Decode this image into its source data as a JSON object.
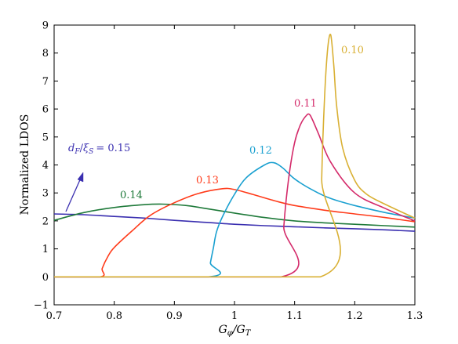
{
  "chart_data": {
    "type": "line",
    "xlabel": "G_φ/G_T",
    "ylabel": "Normalized LDOS",
    "xlim": [
      0.7,
      1.3
    ],
    "ylim": [
      -1,
      9
    ],
    "xticks": [
      0.7,
      0.8,
      0.9,
      1,
      1.1,
      1.2,
      1.3
    ],
    "yticks": [
      -1,
      0,
      1,
      2,
      3,
      4,
      5,
      6,
      7,
      8,
      9
    ],
    "xtick_labels": [
      "0.7",
      "0.8",
      "0.9",
      "1",
      "1.1",
      "1.2",
      "1.3"
    ],
    "ytick_labels": [
      "−1",
      "0",
      "1",
      "2",
      "3",
      "4",
      "5",
      "6",
      "7",
      "8",
      "9"
    ],
    "grid": false,
    "legend": "none",
    "series": [
      {
        "name": "d_F/ξ_S = 0.15",
        "label": "= 0.15",
        "color": "#3a2fb0",
        "x": [
          0.7,
          0.75,
          0.8,
          0.85,
          0.9,
          0.95,
          1.0,
          1.05,
          1.1,
          1.15,
          1.2,
          1.25,
          1.3
        ],
        "y": [
          2.25,
          2.22,
          2.16,
          2.1,
          2.02,
          1.95,
          1.88,
          1.83,
          1.79,
          1.75,
          1.72,
          1.68,
          1.63
        ]
      },
      {
        "name": "0.14",
        "label": "0.14",
        "color": "#1f7a3a",
        "x": [
          0.7,
          0.75,
          0.8,
          0.85,
          0.88,
          0.92,
          0.95,
          1.0,
          1.05,
          1.1,
          1.15,
          1.2,
          1.25,
          1.3
        ],
        "y": [
          2.02,
          2.3,
          2.48,
          2.58,
          2.6,
          2.55,
          2.45,
          2.28,
          2.12,
          2.0,
          1.93,
          1.88,
          1.83,
          1.78
        ]
      },
      {
        "name": "0.13",
        "label": "0.13",
        "color": "#ff3b1a",
        "x": [
          0.7,
          0.777,
          0.78,
          0.79,
          0.8,
          0.83,
          0.86,
          0.9,
          0.94,
          0.98,
          1.0,
          1.03,
          1.07,
          1.1,
          1.15,
          1.2,
          1.25,
          1.3
        ],
        "y": [
          0,
          0,
          0.3,
          0.75,
          1.05,
          1.65,
          2.2,
          2.65,
          2.98,
          3.15,
          3.12,
          2.95,
          2.7,
          2.55,
          2.38,
          2.25,
          2.12,
          1.97
        ]
      },
      {
        "name": "0.12",
        "label": "0.12",
        "color": "#1aa0d0",
        "x": [
          0.7,
          0.957,
          0.96,
          0.965,
          0.97,
          0.98,
          1.0,
          1.02,
          1.05,
          1.065,
          1.08,
          1.1,
          1.13,
          1.16,
          1.2,
          1.25,
          1.3
        ],
        "y": [
          0,
          0,
          0.5,
          1.05,
          1.6,
          2.15,
          2.95,
          3.55,
          4.0,
          4.08,
          3.9,
          3.5,
          3.1,
          2.8,
          2.55,
          2.3,
          2.1
        ]
      },
      {
        "name": "0.11",
        "label": "0.11",
        "color": "#d42a6a",
        "x": [
          0.7,
          1.078,
          1.082,
          1.09,
          1.1,
          1.11,
          1.12,
          1.125,
          1.13,
          1.14,
          1.16,
          1.2,
          1.25,
          1.3
        ],
        "y": [
          0,
          0,
          1.8,
          3.5,
          4.8,
          5.45,
          5.78,
          5.8,
          5.6,
          5.1,
          4.1,
          3.0,
          2.45,
          2.0
        ]
      },
      {
        "name": "0.10",
        "label": "0.10",
        "color": "#d9b034",
        "x": [
          0.7,
          1.143,
          1.145,
          1.15,
          1.155,
          1.16,
          1.165,
          1.17,
          1.18,
          1.2,
          1.22,
          1.25,
          1.3
        ],
        "y": [
          0,
          0,
          3.5,
          6.5,
          8.15,
          8.65,
          7.6,
          6.1,
          4.6,
          3.45,
          2.95,
          2.6,
          2.1
        ]
      }
    ]
  }
}
